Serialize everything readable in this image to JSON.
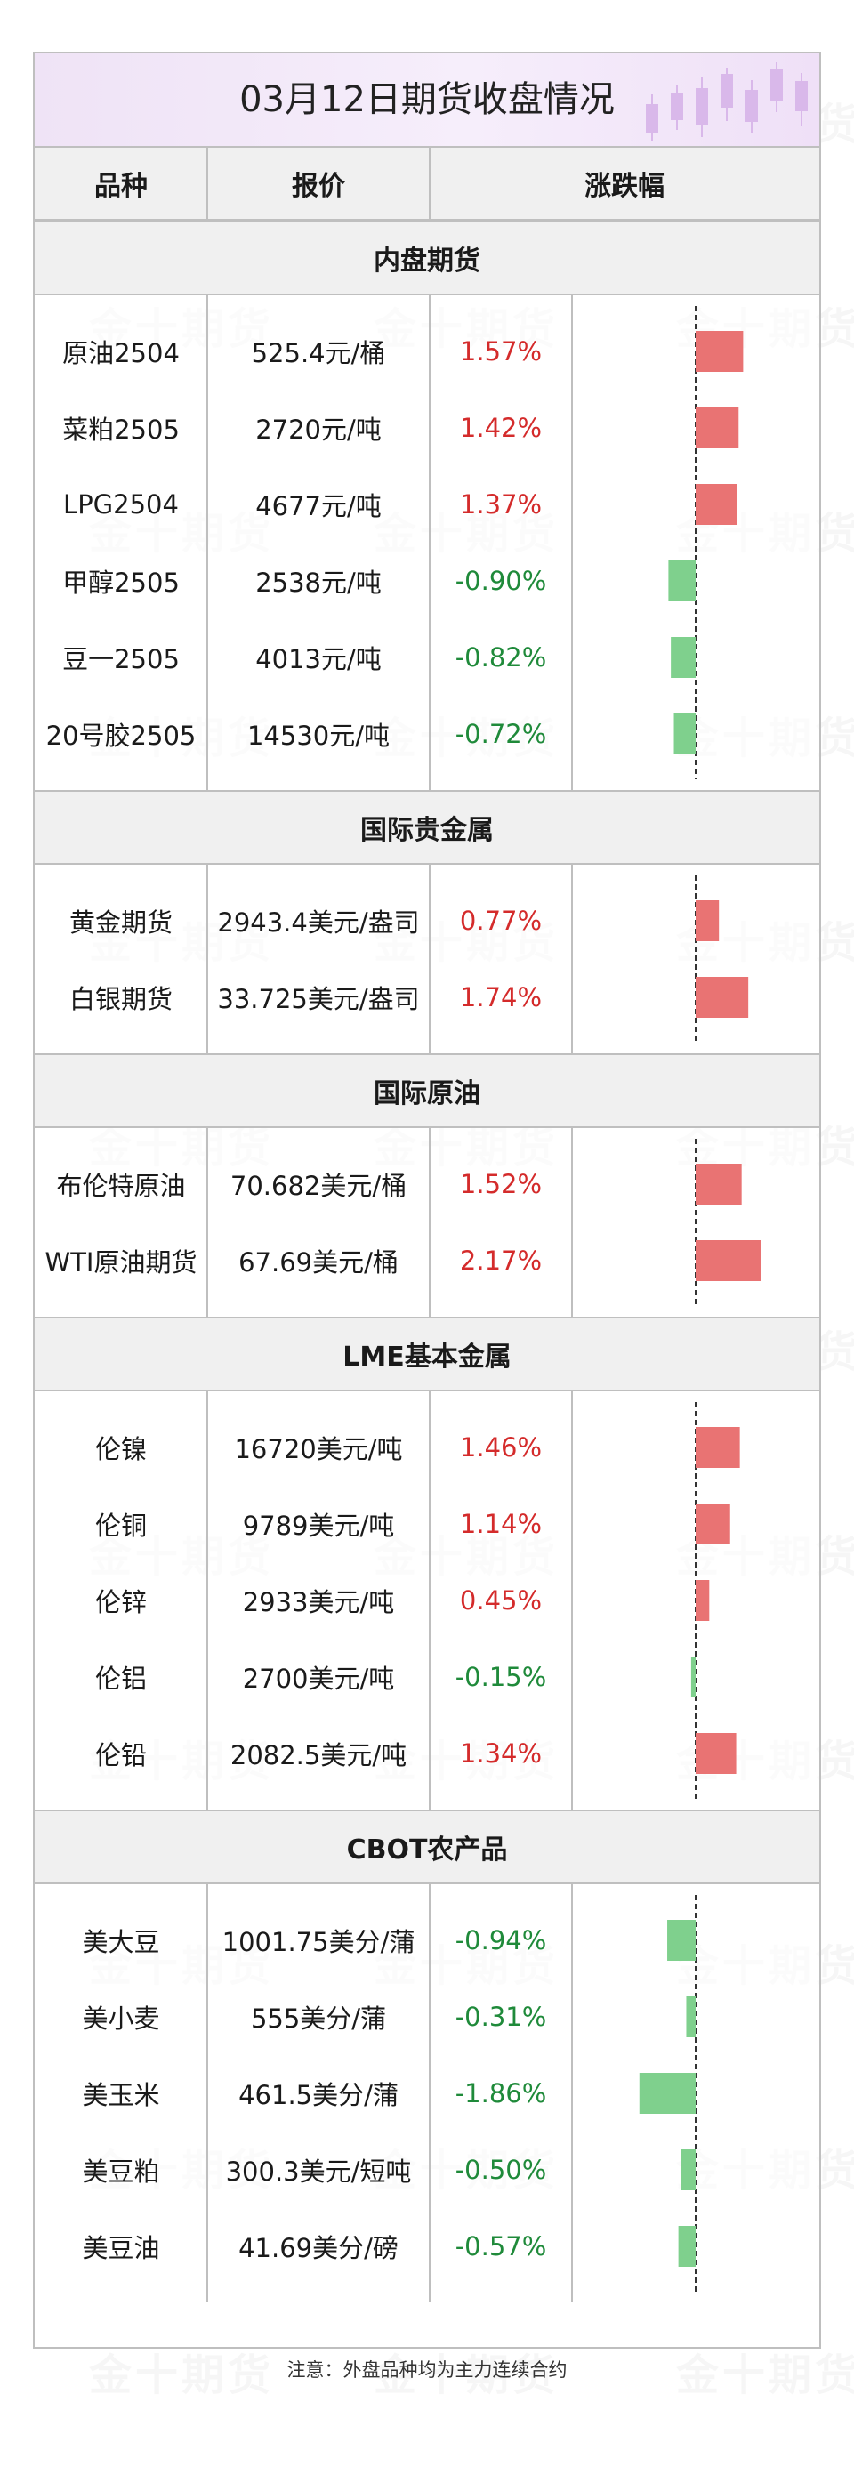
{
  "title": "03月12日期货收盘情况",
  "headers": {
    "name": "品种",
    "price": "报价",
    "change": "涨跌幅"
  },
  "watermark": "金十期货",
  "note": "注意：外盘品种均为主力连续合约",
  "colors": {
    "up": "#e97373",
    "down": "#7fd08d",
    "up_text": "#d42b2b",
    "down_text": "#1f8a3a",
    "header_bg": "#f0f0f0",
    "border": "#bfbfbf"
  },
  "chart_data": {
    "type": "table",
    "sections": [
      {
        "name": "内盘期货",
        "rows": [
          {
            "name": "原油2504",
            "price": "525.4元/桶",
            "change_label": "1.57%",
            "change": 1.57
          },
          {
            "name": "菜粕2505",
            "price": "2720元/吨",
            "change_label": "1.42%",
            "change": 1.42
          },
          {
            "name": "LPG2504",
            "price": "4677元/吨",
            "change_label": "1.37%",
            "change": 1.37
          },
          {
            "name": "甲醇2505",
            "price": "2538元/吨",
            "change_label": "-0.90%",
            "change": -0.9
          },
          {
            "name": "豆一2505",
            "price": "4013元/吨",
            "change_label": "-0.82%",
            "change": -0.82
          },
          {
            "name": "20号胶2505",
            "price": "14530元/吨",
            "change_label": "-0.72%",
            "change": -0.72
          }
        ]
      },
      {
        "name": "国际贵金属",
        "rows": [
          {
            "name": "黄金期货",
            "price": "2943.4美元/盎司",
            "change_label": "0.77%",
            "change": 0.77
          },
          {
            "name": "白银期货",
            "price": "33.725美元/盎司",
            "change_label": "1.74%",
            "change": 1.74
          }
        ]
      },
      {
        "name": "国际原油",
        "rows": [
          {
            "name": "布伦特原油",
            "price": "70.682美元/桶",
            "change_label": "1.52%",
            "change": 1.52
          },
          {
            "name": "WTI原油期货",
            "price": "67.69美元/桶",
            "change_label": "2.17%",
            "change": 2.17
          }
        ]
      },
      {
        "name": "LME基本金属",
        "rows": [
          {
            "name": "伦镍",
            "price": "16720美元/吨",
            "change_label": "1.46%",
            "change": 1.46
          },
          {
            "name": "伦铜",
            "price": "9789美元/吨",
            "change_label": "1.14%",
            "change": 1.14
          },
          {
            "name": "伦锌",
            "price": "2933美元/吨",
            "change_label": "0.45%",
            "change": 0.45
          },
          {
            "name": "伦铝",
            "price": "2700美元/吨",
            "change_label": "-0.15%",
            "change": -0.15
          },
          {
            "name": "伦铅",
            "price": "2082.5美元/吨",
            "change_label": "1.34%",
            "change": 1.34
          }
        ]
      },
      {
        "name": "CBOT农产品",
        "rows": [
          {
            "name": "美大豆",
            "price": "1001.75美分/蒲",
            "change_label": "-0.94%",
            "change": -0.94
          },
          {
            "name": "美小麦",
            "price": "555美分/蒲",
            "change_label": "-0.31%",
            "change": -0.31
          },
          {
            "name": "美玉米",
            "price": "461.5美分/蒲",
            "change_label": "-1.86%",
            "change": -1.86
          },
          {
            "name": "美豆粕",
            "price": "300.3美元/短吨",
            "change_label": "-0.50%",
            "change": -0.5
          },
          {
            "name": "美豆油",
            "price": "41.69美分/磅",
            "change_label": "-0.57%",
            "change": -0.57
          }
        ]
      }
    ]
  }
}
